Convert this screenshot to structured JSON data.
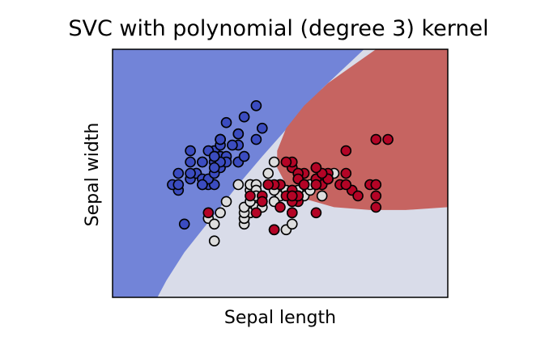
{
  "chart_data": {
    "type": "scatter",
    "title": "SVC with polynomial (degree 3) kernel",
    "xlabel": "Sepal length",
    "ylabel": "Sepal width",
    "xlim": [
      3.3,
      8.9
    ],
    "ylim": [
      1.0,
      5.4
    ],
    "grid": false,
    "xticks": [],
    "yticks": [],
    "colors": {
      "region_setosa": "#7284d8",
      "region_versicolor": "#d9dce9",
      "region_virginica": "#c66461",
      "point_setosa": "#3b4cc0",
      "point_versicolor": "#dddddd",
      "point_virginica": "#b40426"
    },
    "boundaries": {
      "blue_region_polygon": [
        [
          3.3,
          1.0
        ],
        [
          4.05,
          1.0
        ],
        [
          4.2,
          1.3
        ],
        [
          4.5,
          1.8
        ],
        [
          4.8,
          2.2
        ],
        [
          5.1,
          2.6
        ],
        [
          5.4,
          3.0
        ],
        [
          5.8,
          3.5
        ],
        [
          6.3,
          4.1
        ],
        [
          6.8,
          4.7
        ],
        [
          7.3,
          5.2
        ],
        [
          7.5,
          5.4
        ],
        [
          3.3,
          5.4
        ]
      ],
      "red_region_polygon": [
        [
          8.9,
          5.4
        ],
        [
          7.7,
          5.4
        ],
        [
          7.3,
          5.1
        ],
        [
          6.9,
          4.8
        ],
        [
          6.5,
          4.4
        ],
        [
          6.2,
          4.0
        ],
        [
          6.05,
          3.6
        ],
        [
          6.05,
          3.3
        ],
        [
          6.2,
          3.0
        ],
        [
          6.5,
          2.75
        ],
        [
          7.0,
          2.6
        ],
        [
          7.6,
          2.55
        ],
        [
          8.2,
          2.55
        ],
        [
          8.9,
          2.6
        ]
      ]
    },
    "series": [
      {
        "class": 0,
        "points": [
          [
            5.1,
            3.5
          ],
          [
            4.9,
            3.0
          ],
          [
            4.7,
            3.2
          ],
          [
            4.6,
            3.1
          ],
          [
            5.0,
            3.6
          ],
          [
            5.4,
            3.9
          ],
          [
            4.6,
            3.4
          ],
          [
            5.0,
            3.4
          ],
          [
            4.4,
            2.9
          ],
          [
            4.9,
            3.1
          ],
          [
            5.4,
            3.7
          ],
          [
            4.8,
            3.4
          ],
          [
            4.8,
            3.0
          ],
          [
            4.3,
            3.0
          ],
          [
            5.8,
            4.0
          ],
          [
            5.7,
            4.4
          ],
          [
            5.4,
            3.9
          ],
          [
            5.1,
            3.5
          ],
          [
            5.7,
            3.8
          ],
          [
            5.1,
            3.8
          ],
          [
            5.4,
            3.4
          ],
          [
            5.1,
            3.7
          ],
          [
            4.6,
            3.6
          ],
          [
            5.1,
            3.3
          ],
          [
            4.8,
            3.4
          ],
          [
            5.0,
            3.0
          ],
          [
            5.0,
            3.4
          ],
          [
            5.2,
            3.5
          ],
          [
            5.2,
            3.4
          ],
          [
            4.7,
            3.2
          ],
          [
            4.8,
            3.1
          ],
          [
            5.4,
            3.4
          ],
          [
            5.2,
            4.1
          ],
          [
            5.5,
            4.2
          ],
          [
            4.9,
            3.1
          ],
          [
            5.0,
            3.2
          ],
          [
            5.5,
            3.5
          ],
          [
            4.9,
            3.6
          ],
          [
            4.4,
            3.0
          ],
          [
            5.1,
            3.4
          ],
          [
            5.0,
            3.5
          ],
          [
            4.5,
            2.3
          ],
          [
            4.4,
            3.2
          ],
          [
            5.0,
            3.5
          ],
          [
            5.1,
            3.8
          ],
          [
            4.8,
            3.0
          ],
          [
            5.1,
            3.8
          ],
          [
            4.6,
            3.2
          ],
          [
            5.3,
            3.7
          ],
          [
            5.0,
            3.3
          ]
        ]
      },
      {
        "class": 1,
        "points": [
          [
            7.0,
            3.2
          ],
          [
            6.4,
            3.2
          ],
          [
            6.9,
            3.1
          ],
          [
            5.5,
            2.3
          ],
          [
            6.5,
            2.8
          ],
          [
            5.7,
            2.8
          ],
          [
            6.3,
            3.3
          ],
          [
            4.9,
            2.4
          ],
          [
            6.6,
            2.9
          ],
          [
            5.2,
            2.7
          ],
          [
            5.0,
            2.0
          ],
          [
            5.9,
            3.0
          ],
          [
            6.0,
            2.2
          ],
          [
            6.1,
            2.9
          ],
          [
            5.6,
            2.9
          ],
          [
            6.7,
            3.1
          ],
          [
            5.6,
            3.0
          ],
          [
            5.8,
            2.7
          ],
          [
            6.2,
            2.2
          ],
          [
            5.6,
            2.5
          ],
          [
            5.9,
            3.2
          ],
          [
            6.1,
            2.8
          ],
          [
            6.3,
            2.5
          ],
          [
            6.1,
            2.8
          ],
          [
            6.4,
            2.9
          ],
          [
            6.6,
            3.0
          ],
          [
            6.8,
            2.8
          ],
          [
            6.7,
            3.0
          ],
          [
            6.0,
            2.9
          ],
          [
            5.7,
            2.6
          ],
          [
            5.5,
            2.4
          ],
          [
            5.5,
            2.4
          ],
          [
            5.8,
            2.7
          ],
          [
            6.0,
            2.7
          ],
          [
            5.4,
            3.0
          ],
          [
            6.0,
            3.4
          ],
          [
            6.7,
            3.1
          ],
          [
            6.3,
            2.3
          ],
          [
            5.6,
            3.0
          ],
          [
            5.5,
            2.5
          ],
          [
            5.5,
            2.6
          ],
          [
            6.1,
            3.0
          ],
          [
            5.8,
            2.6
          ],
          [
            5.0,
            2.3
          ],
          [
            5.6,
            2.7
          ],
          [
            5.7,
            3.0
          ],
          [
            5.7,
            2.9
          ],
          [
            6.2,
            2.9
          ],
          [
            5.1,
            2.5
          ],
          [
            5.7,
            2.8
          ]
        ]
      },
      {
        "class": 2,
        "points": [
          [
            6.3,
            3.3
          ],
          [
            5.8,
            2.7
          ],
          [
            7.1,
            3.0
          ],
          [
            6.3,
            2.9
          ],
          [
            6.5,
            3.0
          ],
          [
            7.6,
            3.0
          ],
          [
            4.9,
            2.5
          ],
          [
            7.3,
            2.9
          ],
          [
            6.7,
            2.5
          ],
          [
            7.2,
            3.6
          ],
          [
            6.5,
            3.2
          ],
          [
            6.4,
            2.7
          ],
          [
            6.8,
            3.0
          ],
          [
            5.7,
            2.5
          ],
          [
            5.8,
            2.8
          ],
          [
            6.4,
            3.2
          ],
          [
            6.5,
            3.0
          ],
          [
            7.7,
            3.8
          ],
          [
            7.7,
            2.6
          ],
          [
            6.0,
            2.2
          ],
          [
            6.9,
            3.2
          ],
          [
            5.6,
            2.8
          ],
          [
            7.7,
            2.8
          ],
          [
            6.3,
            2.7
          ],
          [
            6.7,
            3.3
          ],
          [
            7.2,
            3.2
          ],
          [
            6.2,
            2.8
          ],
          [
            6.1,
            3.0
          ],
          [
            6.4,
            2.8
          ],
          [
            7.2,
            3.0
          ],
          [
            7.4,
            2.8
          ],
          [
            7.9,
            3.8
          ],
          [
            6.4,
            2.8
          ],
          [
            6.3,
            2.8
          ],
          [
            6.1,
            2.6
          ],
          [
            7.7,
            3.0
          ],
          [
            6.3,
            3.4
          ],
          [
            6.4,
            3.1
          ],
          [
            6.0,
            3.0
          ],
          [
            6.9,
            3.1
          ],
          [
            6.7,
            3.1
          ],
          [
            6.9,
            3.1
          ],
          [
            5.8,
            2.7
          ],
          [
            6.8,
            3.2
          ],
          [
            6.7,
            3.3
          ],
          [
            6.7,
            3.0
          ],
          [
            6.3,
            2.5
          ],
          [
            6.5,
            3.0
          ],
          [
            6.2,
            3.4
          ],
          [
            5.9,
            3.0
          ]
        ]
      }
    ]
  }
}
